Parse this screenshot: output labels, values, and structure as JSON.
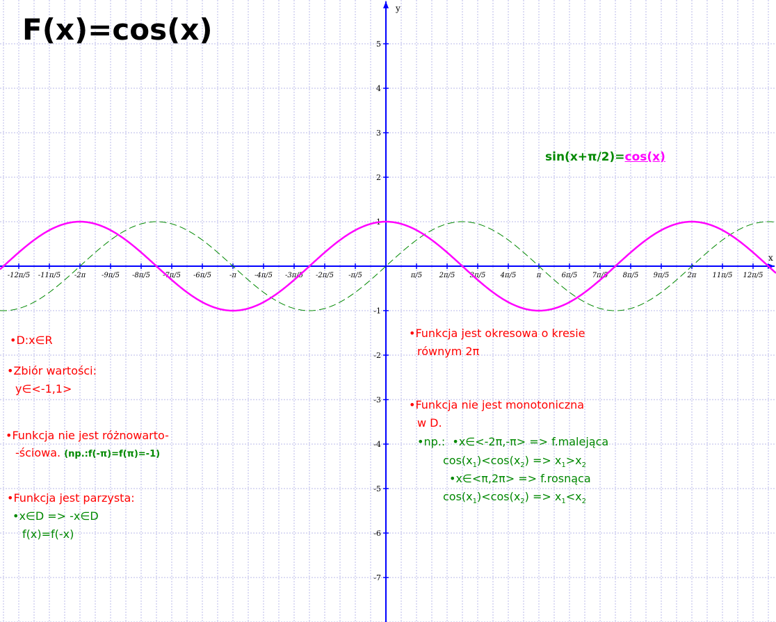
{
  "title": "F(x)=cos(x)",
  "formula": {
    "left": "sin(x+π/2)=",
    "right": "cos(x)"
  },
  "chart_data": {
    "type": "line",
    "xlabel": "x",
    "ylabel": "y",
    "xlim": [
      -12.6,
      12.6
    ],
    "ylim": [
      -8.0,
      6.0
    ],
    "grid": true,
    "xticks": [
      {
        "k": -12,
        "label": "-12π/5"
      },
      {
        "k": -11,
        "label": "-11π/5"
      },
      {
        "k": -10,
        "label": "-2π"
      },
      {
        "k": -9,
        "label": "-9π/5"
      },
      {
        "k": -8,
        "label": "-8π/5"
      },
      {
        "k": -7,
        "label": "-7π/5"
      },
      {
        "k": -6,
        "label": "-6π/5"
      },
      {
        "k": -5,
        "label": "-π"
      },
      {
        "k": -4,
        "label": "-4π/5"
      },
      {
        "k": -3,
        "label": "-3π/5"
      },
      {
        "k": -2,
        "label": "-2π/5"
      },
      {
        "k": -1,
        "label": "-π/5"
      },
      {
        "k": 1,
        "label": "π/5"
      },
      {
        "k": 2,
        "label": "2π/5"
      },
      {
        "k": 3,
        "label": "3π/5"
      },
      {
        "k": 4,
        "label": "4π/5"
      },
      {
        "k": 5,
        "label": "π"
      },
      {
        "k": 6,
        "label": "6π/5"
      },
      {
        "k": 7,
        "label": "7π/5"
      },
      {
        "k": 8,
        "label": "8π/5"
      },
      {
        "k": 9,
        "label": "9π/5"
      },
      {
        "k": 10,
        "label": "2π"
      },
      {
        "k": 11,
        "label": "11π/5"
      },
      {
        "k": 12,
        "label": "12π/5"
      }
    ],
    "yticks": [
      {
        "v": 5,
        "label": "5"
      },
      {
        "v": 4,
        "label": "4"
      },
      {
        "v": 3,
        "label": "3"
      },
      {
        "v": 2,
        "label": "2"
      },
      {
        "v": 1,
        "label": "1"
      },
      {
        "v": -1,
        "label": "-1"
      },
      {
        "v": -2,
        "label": "-2"
      },
      {
        "v": -3,
        "label": "-3"
      },
      {
        "v": -4,
        "label": "-4"
      },
      {
        "v": -5,
        "label": "-5"
      },
      {
        "v": -6,
        "label": "-6"
      },
      {
        "v": -7,
        "label": "-7"
      }
    ],
    "series": [
      {
        "function": "cos(x)",
        "color": "#ff00ff",
        "style": "solid"
      },
      {
        "function": "sin(x)",
        "color": "#008800",
        "style": "dashed"
      }
    ]
  },
  "notes": {
    "domain": "•D:x∈R",
    "range_title": "•Zbiór wartości:",
    "range_value": "y∈<-1,1>",
    "not_injective_1": "•Funkcja nie jest różnowarto-",
    "not_injective_2": "-ściowa.",
    "not_injective_example": "(np.:f(-π)=f(π)=-1)",
    "even_title": "•Funkcja jest parzysta:",
    "even_line1": "•x∈D => -x∈D",
    "even_line2": "f(x)=f(-x)",
    "periodic_1": "•Funkcja jest okresowa o kresie",
    "periodic_2": "równym 2π",
    "monotonic_1": "•Funkcja nie jest monotoniczna",
    "monotonic_2": "w D.",
    "example_prefix": "•np.:",
    "decreasing_interval": "•x∈<-2π,-π> => f.malejąca",
    "decreasing_cond_a": "cos(x",
    "decreasing_cond_b": ")<cos(x",
    "decreasing_cond_c": ") => x",
    "decreasing_cond_d": ">x",
    "increasing_interval": "•x∈<π,2π> => f.rosnąca",
    "increasing_cond_a": "cos(x",
    "increasing_cond_b": ")<cos(x",
    "increasing_cond_c": ") => x",
    "increasing_cond_d": "<x",
    "sub1": "1",
    "sub2": "2"
  }
}
